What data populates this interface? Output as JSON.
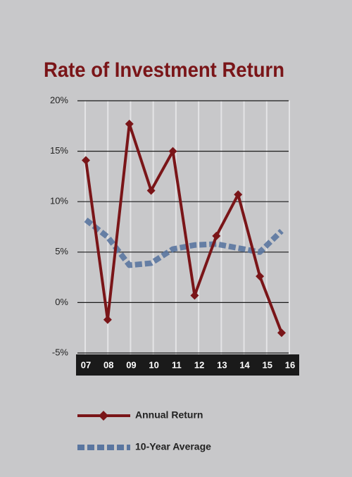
{
  "chart_data": {
    "type": "line",
    "title": "Rate of Investment Return",
    "categories": [
      "07",
      "08",
      "09",
      "10",
      "11",
      "12",
      "13",
      "14",
      "15",
      "16"
    ],
    "series": [
      {
        "name": "Annual Return",
        "color": "#7a1518",
        "values": [
          14.1,
          -1.7,
          17.7,
          11.1,
          15.0,
          0.7,
          6.6,
          10.7,
          2.6,
          -3.0
        ]
      },
      {
        "name": "10-Year Average",
        "color": "#5a76a0",
        "values": [
          8.2,
          6.5,
          3.7,
          3.9,
          5.3,
          5.7,
          5.8,
          5.4,
          5.0,
          7.1
        ]
      }
    ],
    "ylim": [
      -5,
      20
    ],
    "yticks": [
      {
        "value": -5,
        "label": "-5%"
      },
      {
        "value": 0,
        "label": "0%"
      },
      {
        "value": 5,
        "label": "5%"
      },
      {
        "value": 10,
        "label": "10%"
      },
      {
        "value": 15,
        "label": "15%"
      },
      {
        "value": 20,
        "label": "20%"
      }
    ],
    "grid": true
  }
}
